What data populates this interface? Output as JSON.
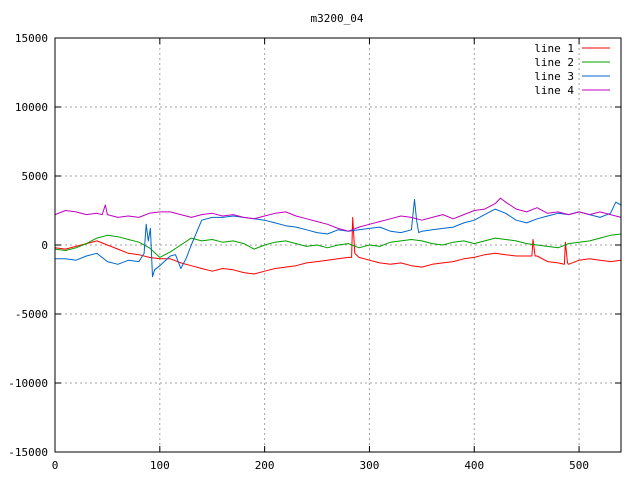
{
  "chart_data": {
    "type": "line",
    "title": "m3200_04",
    "xlabel": "",
    "ylabel": "",
    "xlim": [
      0,
      540
    ],
    "ylim": [
      -15000,
      15000
    ],
    "x_ticks": [
      0,
      100,
      200,
      300,
      400,
      500
    ],
    "y_ticks": [
      -15000,
      -10000,
      -5000,
      0,
      5000,
      10000,
      15000
    ],
    "grid": true,
    "legend_position": "top-right",
    "series": [
      {
        "name": "line 1",
        "color": "#ff0000",
        "x": [
          0,
          10,
          20,
          30,
          40,
          50,
          60,
          70,
          80,
          90,
          100,
          110,
          120,
          130,
          140,
          150,
          160,
          170,
          180,
          190,
          200,
          210,
          220,
          230,
          240,
          250,
          260,
          270,
          280,
          283,
          284,
          286,
          290,
          300,
          310,
          320,
          330,
          340,
          350,
          360,
          370,
          380,
          390,
          400,
          410,
          420,
          430,
          440,
          450,
          455,
          456,
          458,
          460,
          470,
          480,
          486,
          487,
          489,
          490,
          500,
          510,
          520,
          530,
          540
        ],
        "y": [
          -200,
          -300,
          -100,
          100,
          300,
          0,
          -300,
          -600,
          -700,
          -900,
          -1000,
          -1000,
          -1300,
          -1500,
          -1700,
          -1900,
          -1700,
          -1800,
          -2000,
          -2100,
          -1900,
          -1700,
          -1600,
          -1500,
          -1300,
          -1200,
          -1100,
          -1000,
          -900,
          -900,
          2000,
          -600,
          -900,
          -1100,
          -1300,
          -1400,
          -1300,
          -1500,
          -1600,
          -1400,
          -1300,
          -1200,
          -1000,
          -900,
          -700,
          -600,
          -700,
          -800,
          -800,
          -800,
          400,
          -800,
          -800,
          -1200,
          -1300,
          -1400,
          200,
          -1300,
          -1400,
          -1100,
          -1000,
          -1100,
          -1200,
          -1100
        ]
      },
      {
        "name": "line 2",
        "color": "#00a000",
        "x": [
          0,
          10,
          20,
          30,
          40,
          50,
          60,
          70,
          80,
          90,
          100,
          110,
          120,
          130,
          140,
          150,
          160,
          170,
          180,
          190,
          200,
          210,
          220,
          230,
          240,
          250,
          260,
          270,
          280,
          290,
          300,
          310,
          320,
          330,
          340,
          350,
          360,
          370,
          380,
          390,
          400,
          410,
          420,
          430,
          440,
          450,
          460,
          470,
          480,
          490,
          500,
          510,
          520,
          530,
          540
        ],
        "y": [
          -300,
          -400,
          -200,
          100,
          500,
          700,
          600,
          400,
          200,
          -200,
          -900,
          -500,
          0,
          500,
          300,
          400,
          200,
          300,
          100,
          -300,
          0,
          200,
          300,
          100,
          -100,
          0,
          -200,
          0,
          100,
          -200,
          0,
          -100,
          200,
          300,
          400,
          300,
          100,
          0,
          200,
          300,
          100,
          300,
          500,
          400,
          300,
          100,
          0,
          -100,
          -200,
          100,
          200,
          300,
          500,
          700,
          800
        ]
      },
      {
        "name": "line 3",
        "color": "#0066cc",
        "x": [
          0,
          10,
          20,
          30,
          40,
          50,
          60,
          70,
          80,
          85,
          87,
          89,
          91,
          93,
          95,
          100,
          110,
          115,
          120,
          125,
          130,
          140,
          150,
          160,
          170,
          180,
          190,
          200,
          210,
          220,
          230,
          240,
          250,
          260,
          270,
          280,
          290,
          300,
          310,
          320,
          330,
          340,
          343,
          345,
          347,
          350,
          360,
          370,
          380,
          390,
          400,
          410,
          420,
          430,
          440,
          450,
          460,
          470,
          480,
          490,
          500,
          510,
          520,
          530,
          535,
          540
        ],
        "y": [
          -1000,
          -1000,
          -1100,
          -800,
          -600,
          -1200,
          -1400,
          -1100,
          -1200,
          -600,
          1500,
          300,
          1200,
          -2300,
          -1800,
          -1500,
          -800,
          -700,
          -1700,
          -1000,
          0,
          1800,
          2000,
          2000,
          2100,
          2000,
          1900,
          1800,
          1600,
          1400,
          1300,
          1100,
          900,
          800,
          1100,
          1000,
          1100,
          1200,
          1300,
          1000,
          900,
          1100,
          3300,
          1800,
          900,
          1000,
          1100,
          1200,
          1300,
          1600,
          1800,
          2200,
          2600,
          2300,
          1800,
          1600,
          1900,
          2100,
          2300,
          2200,
          2400,
          2200,
          2000,
          2300,
          3100,
          2900
        ]
      },
      {
        "name": "line 4",
        "color": "#c000c0",
        "x": [
          0,
          10,
          20,
          30,
          40,
          45,
          48,
          50,
          60,
          70,
          80,
          90,
          100,
          110,
          120,
          130,
          140,
          150,
          160,
          170,
          180,
          190,
          200,
          210,
          220,
          230,
          240,
          250,
          260,
          270,
          280,
          290,
          300,
          310,
          320,
          330,
          340,
          350,
          360,
          370,
          380,
          390,
          400,
          410,
          420,
          425,
          430,
          440,
          450,
          460,
          470,
          480,
          490,
          500,
          510,
          520,
          530,
          540
        ],
        "y": [
          2200,
          2500,
          2400,
          2200,
          2300,
          2200,
          2900,
          2200,
          2000,
          2100,
          2000,
          2300,
          2400,
          2400,
          2200,
          2000,
          2200,
          2300,
          2100,
          2200,
          2000,
          1900,
          2100,
          2300,
          2400,
          2100,
          1900,
          1700,
          1500,
          1200,
          1000,
          1300,
          1500,
          1700,
          1900,
          2100,
          2000,
          1800,
          2000,
          2200,
          1900,
          2200,
          2500,
          2600,
          3000,
          3400,
          3100,
          2600,
          2400,
          2700,
          2300,
          2400,
          2200,
          2400,
          2200,
          2400,
          2200,
          2000
        ]
      }
    ]
  }
}
